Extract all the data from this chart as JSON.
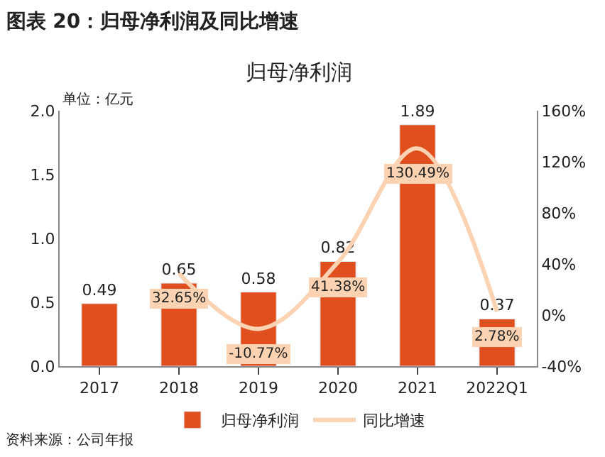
{
  "chart_data": {
    "type": "bar",
    "title": "图表 20：归母净利润及同比增速",
    "subtitle": "归母净利润",
    "categories": [
      "2017",
      "2018",
      "2019",
      "2020",
      "2021",
      "2022Q1"
    ],
    "series": [
      {
        "name": "归母净利润",
        "color": "#e0501e",
        "values": [
          0.49,
          0.65,
          0.58,
          0.82,
          1.89,
          0.37
        ]
      },
      {
        "name": "同比增速",
        "type": "line",
        "axis": "y2",
        "color": "#fbd3b3",
        "values": [
          null,
          32.65,
          -10.77,
          41.38,
          130.49,
          2.78
        ],
        "value_labels": [
          null,
          "32.65%",
          "-10.77%",
          "41.38%",
          "130.49%",
          "2.78%"
        ]
      }
    ],
    "data_labels": true,
    "ylim": [
      0,
      2.0
    ],
    "yticks": [
      {
        "value": 0,
        "label": "0.0"
      },
      0.5,
      {
        "value": 1,
        "label": "1.0"
      },
      1.5,
      {
        "value": 2,
        "label": "2.0"
      }
    ],
    "y2lim": [
      -40,
      160
    ],
    "y2ticks": [
      {
        "value": -40,
        "label": "-40%"
      },
      {
        "value": 0,
        "label": "0%"
      },
      {
        "value": 40,
        "label": "40%"
      },
      {
        "value": 80,
        "label": "80%"
      },
      {
        "value": 120,
        "label": "120%"
      },
      {
        "value": 160,
        "label": "160%"
      }
    ],
    "legend": "bottom",
    "marker": "none",
    "annotations": [
      "单位：亿元",
      "资料来源：公司年报"
    ]
  }
}
